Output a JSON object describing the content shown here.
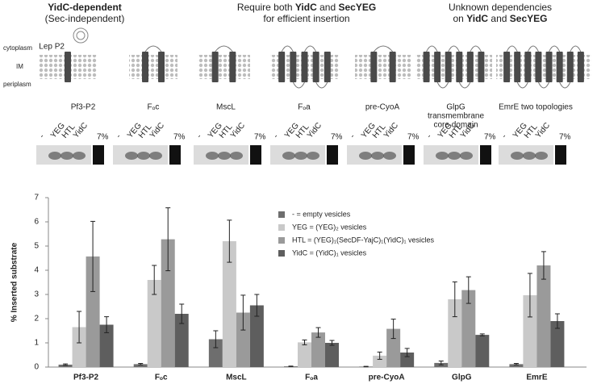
{
  "header": {
    "groups": [
      {
        "lines": [
          [
            {
              "text": "YidC-dependent",
              "bold": true
            }
          ],
          [
            {
              "text": "(Sec-independent)",
              "bold": false
            }
          ]
        ]
      },
      {
        "lines": [
          [
            {
              "text": "Require both ",
              "bold": false
            },
            {
              "text": "YidC",
              "bold": true
            },
            {
              "text": " and ",
              "bold": false
            },
            {
              "text": "SecYEG",
              "bold": true
            }
          ],
          [
            {
              "text": "for efficient insertion",
              "bold": false
            }
          ]
        ]
      },
      {
        "lines": [
          [
            {
              "text": "Unknown dependencies",
              "bold": false
            }
          ],
          [
            {
              "text": "on ",
              "bold": false
            },
            {
              "text": "YidC",
              "bold": true
            },
            {
              "text": " and ",
              "bold": false
            },
            {
              "text": "SecYEG",
              "bold": true
            }
          ]
        ]
      }
    ]
  },
  "diagram": {
    "side_labels": [
      "cytoplasm",
      "IM",
      "periplasm"
    ],
    "lep_label": "Lep P2",
    "proteins": [
      [
        "Pf3-P2"
      ],
      [
        "Fₒc"
      ],
      [
        "MscL"
      ],
      [
        "Fₒa"
      ],
      [
        "pre-CyoA"
      ],
      [
        "GlpG",
        "transmembrane",
        "core domain"
      ],
      [
        "EmrE two topologies"
      ]
    ]
  },
  "gels": {
    "lanes": [
      "-",
      "YEG",
      "HTL",
      "YidC",
      "7%"
    ]
  },
  "chart_data": {
    "type": "bar",
    "y_label": "% Inserted substrate",
    "categories": [
      "Pf3-P2",
      "Fₒc",
      "MscL",
      "Fₒa",
      "pre-CyoA",
      "GlpG",
      "EmrE"
    ],
    "series": [
      {
        "name": "- = empty vesicles",
        "color": "#6e6e6e",
        "values": [
          0.1,
          0.12,
          1.15,
          0.03,
          0.02,
          0.17,
          0.12
        ],
        "errors": [
          0.03,
          0.03,
          0.35,
          0.01,
          0.01,
          0.08,
          0.03
        ]
      },
      {
        "name": "YEG = (YEG)₂ vesicles",
        "color": "#c9c9c9",
        "values": [
          1.65,
          3.6,
          5.2,
          1.02,
          0.47,
          2.8,
          2.97
        ],
        "errors": [
          0.65,
          0.6,
          0.87,
          0.1,
          0.15,
          0.72,
          0.9
        ]
      },
      {
        "name": "HTL = (YEG)₁(SecDF-YajC)₁(YidC)₁ vesicles",
        "color": "#9a9a9a",
        "values": [
          4.57,
          5.28,
          2.25,
          1.43,
          1.58,
          3.18,
          4.2
        ],
        "errors": [
          1.45,
          1.3,
          0.72,
          0.2,
          0.4,
          0.55,
          0.57
        ]
      },
      {
        "name": "YidC = (YidC)₁ vesicles",
        "color": "#5e5e5e",
        "values": [
          1.75,
          2.2,
          2.55,
          1.0,
          0.6,
          1.33,
          1.9
        ],
        "errors": [
          0.33,
          0.4,
          0.45,
          0.1,
          0.17,
          0.04,
          0.3
        ]
      }
    ],
    "ylim": [
      0,
      7
    ],
    "yticks": [
      0,
      1,
      2,
      3,
      4,
      5,
      6,
      7
    ],
    "grid": false
  }
}
